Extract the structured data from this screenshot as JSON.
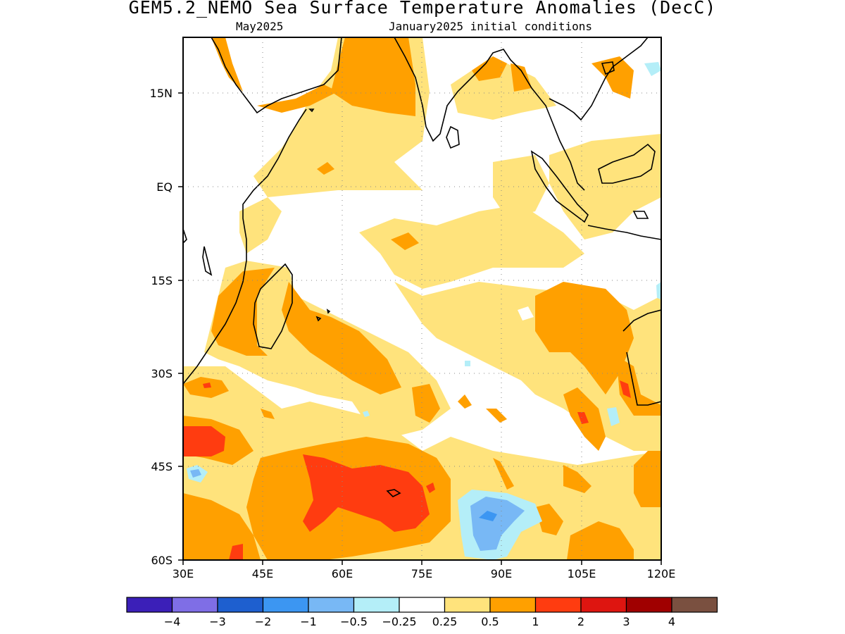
{
  "header": {
    "title": "GEM5.2_NEMO Sea Surface Temperature Anomalies (DecC)",
    "valid_month": "May2025",
    "init": "January2025 initial conditions"
  },
  "axes": {
    "lat_labels": [
      "15N",
      "EQ",
      "15S",
      "30S",
      "45S",
      "60S"
    ],
    "lon_labels": [
      "30E",
      "45E",
      "60E",
      "75E",
      "90E",
      "105E",
      "120E"
    ],
    "lat_range": [
      -60,
      24
    ],
    "lon_range": [
      30,
      120
    ]
  },
  "colorbar": {
    "colors": [
      "#3b1fb8",
      "#7f6ee6",
      "#1e5fcf",
      "#3c96f2",
      "#78b8f5",
      "#b4eef8",
      "#ffffff",
      "#ffe37c",
      "#ffa000",
      "#ff3c10",
      "#de1510",
      "#a00000",
      "#7a5040"
    ],
    "labels": [
      "−4",
      "−3",
      "−2",
      "−1",
      "−0.5",
      "−0.25",
      "0.25",
      "0.5",
      "1",
      "2",
      "3",
      "4"
    ]
  }
}
